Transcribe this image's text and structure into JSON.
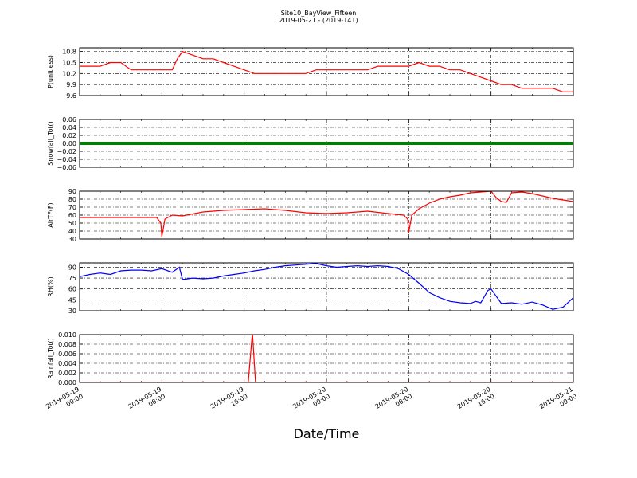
{
  "figure": {
    "title_line1": "Site10_BayView_Fifteen",
    "title_line2": "2019-05-21 - (2019-141)",
    "xlabel": "Date/Time",
    "x_ticks": [
      [
        "2019-05-19",
        "00:00"
      ],
      [
        "2019-05-19",
        "08:00"
      ],
      [
        "2019-05-19",
        "16:00"
      ],
      [
        "2019-05-20",
        "00:00"
      ],
      [
        "2019-05-20",
        "08:00"
      ],
      [
        "2019-05-20",
        "16:00"
      ],
      [
        "2019-05-21",
        "00:00"
      ]
    ]
  },
  "chart_data": [
    {
      "type": "line",
      "ylabel": "P(unitless)",
      "color": "#ff0000",
      "ylim": [
        9.6,
        10.9
      ],
      "yticks": [
        "9.6",
        "9.9",
        "10.2",
        "10.5",
        "10.8"
      ],
      "ytick_values": [
        9.6,
        9.9,
        10.2,
        10.5,
        10.8
      ],
      "x_hours": [
        0,
        1,
        2,
        3,
        4,
        5,
        6,
        7,
        8,
        9,
        9.5,
        10,
        11,
        12,
        13,
        14,
        15,
        16,
        17,
        18,
        19,
        20,
        21,
        22,
        23,
        24,
        25,
        26,
        27,
        28,
        29,
        30,
        31,
        32,
        33,
        34,
        35,
        36,
        37,
        38,
        39,
        40,
        41,
        42,
        43,
        44,
        45,
        46,
        47,
        48
      ],
      "values": [
        10.4,
        10.4,
        10.4,
        10.5,
        10.5,
        10.3,
        10.3,
        10.3,
        10.3,
        10.3,
        10.6,
        10.8,
        10.7,
        10.6,
        10.6,
        10.5,
        10.4,
        10.3,
        10.2,
        10.2,
        10.2,
        10.2,
        10.2,
        10.2,
        10.3,
        10.3,
        10.3,
        10.3,
        10.3,
        10.3,
        10.4,
        10.4,
        10.4,
        10.4,
        10.5,
        10.4,
        10.4,
        10.3,
        10.3,
        10.2,
        10.1,
        10.0,
        9.9,
        9.9,
        9.8,
        9.8,
        9.8,
        9.8,
        9.7,
        9.7
      ]
    },
    {
      "type": "line",
      "ylabel": "Snowfall_Tot()",
      "color": "#008000",
      "ylim": [
        -0.06,
        0.06
      ],
      "yticks": [
        "−0.06",
        "−0.04",
        "−0.02",
        "0.00",
        "0.02",
        "0.04",
        "0.06"
      ],
      "ytick_values": [
        -0.06,
        -0.04,
        -0.02,
        0.0,
        0.02,
        0.04,
        0.06
      ],
      "x_hours": [
        0,
        8,
        16,
        24,
        32,
        40,
        48
      ],
      "values": [
        0,
        0,
        0,
        0,
        0,
        0,
        0
      ]
    },
    {
      "type": "line",
      "ylabel": "AirTF(F)",
      "color": "#ff0000",
      "ylim": [
        30,
        90
      ],
      "yticks": [
        "30",
        "40",
        "50",
        "60",
        "70",
        "80",
        "90"
      ],
      "ytick_values": [
        30,
        40,
        50,
        60,
        70,
        80,
        90
      ],
      "x_hours": [
        0,
        2,
        4,
        6,
        7.5,
        7.9,
        8.0,
        8.3,
        9,
        10,
        12,
        14,
        16,
        18,
        20,
        22,
        24,
        26,
        28,
        30,
        31.5,
        31.9,
        32.0,
        32.3,
        33,
        34,
        35,
        36,
        37,
        38,
        39,
        40,
        40.5,
        41,
        41.5,
        42,
        43,
        44,
        45,
        46,
        47,
        48
      ],
      "values": [
        57,
        57,
        57,
        57,
        57,
        50,
        33,
        55,
        60,
        59,
        64,
        66,
        67,
        68,
        66,
        63,
        62,
        63,
        65,
        62,
        60,
        55,
        38,
        60,
        68,
        75,
        80,
        83,
        85,
        88,
        89,
        90,
        82,
        77,
        76,
        88,
        89,
        87,
        84,
        81,
        79,
        77
      ]
    },
    {
      "type": "line",
      "ylabel": "RH(%)",
      "color": "#0000ff",
      "ylim": [
        30,
        96
      ],
      "yticks": [
        "30",
        "45",
        "60",
        "75",
        "90"
      ],
      "ytick_values": [
        30,
        45,
        60,
        75,
        90
      ],
      "x_hours": [
        0,
        1,
        2,
        3,
        4,
        5,
        6,
        7,
        8,
        9,
        9.7,
        10,
        11,
        12,
        13,
        14,
        15,
        16,
        17,
        18,
        19,
        20,
        21,
        22,
        23,
        24,
        25,
        26,
        27,
        28,
        29,
        30,
        31,
        32,
        33,
        34,
        35,
        36,
        37,
        38,
        38.5,
        39,
        39.7,
        40,
        41,
        42,
        43,
        44,
        45,
        46,
        47,
        48
      ],
      "values": [
        77,
        80,
        82,
        80,
        85,
        86,
        86,
        85,
        88,
        83,
        90,
        73,
        75,
        74,
        75,
        78,
        80,
        82,
        85,
        87,
        90,
        92,
        93,
        94,
        95,
        92,
        90,
        91,
        92,
        91,
        92,
        91,
        88,
        80,
        68,
        55,
        48,
        43,
        41,
        40,
        43,
        41,
        58,
        60,
        40,
        41,
        39,
        42,
        38,
        32,
        35,
        48
      ]
    },
    {
      "type": "line",
      "ylabel": "Rainfall_Tot()",
      "color": "#ff0000",
      "ylim": [
        0.0,
        0.01
      ],
      "yticks": [
        "0.000",
        "0.002",
        "0.004",
        "0.006",
        "0.008",
        "0.010"
      ],
      "ytick_values": [
        0.0,
        0.002,
        0.004,
        0.006,
        0.008,
        0.01
      ],
      "x_hours": [
        0,
        16.4,
        16.8,
        17.1,
        48
      ],
      "values": [
        0,
        0,
        0.0105,
        0,
        0
      ]
    }
  ]
}
